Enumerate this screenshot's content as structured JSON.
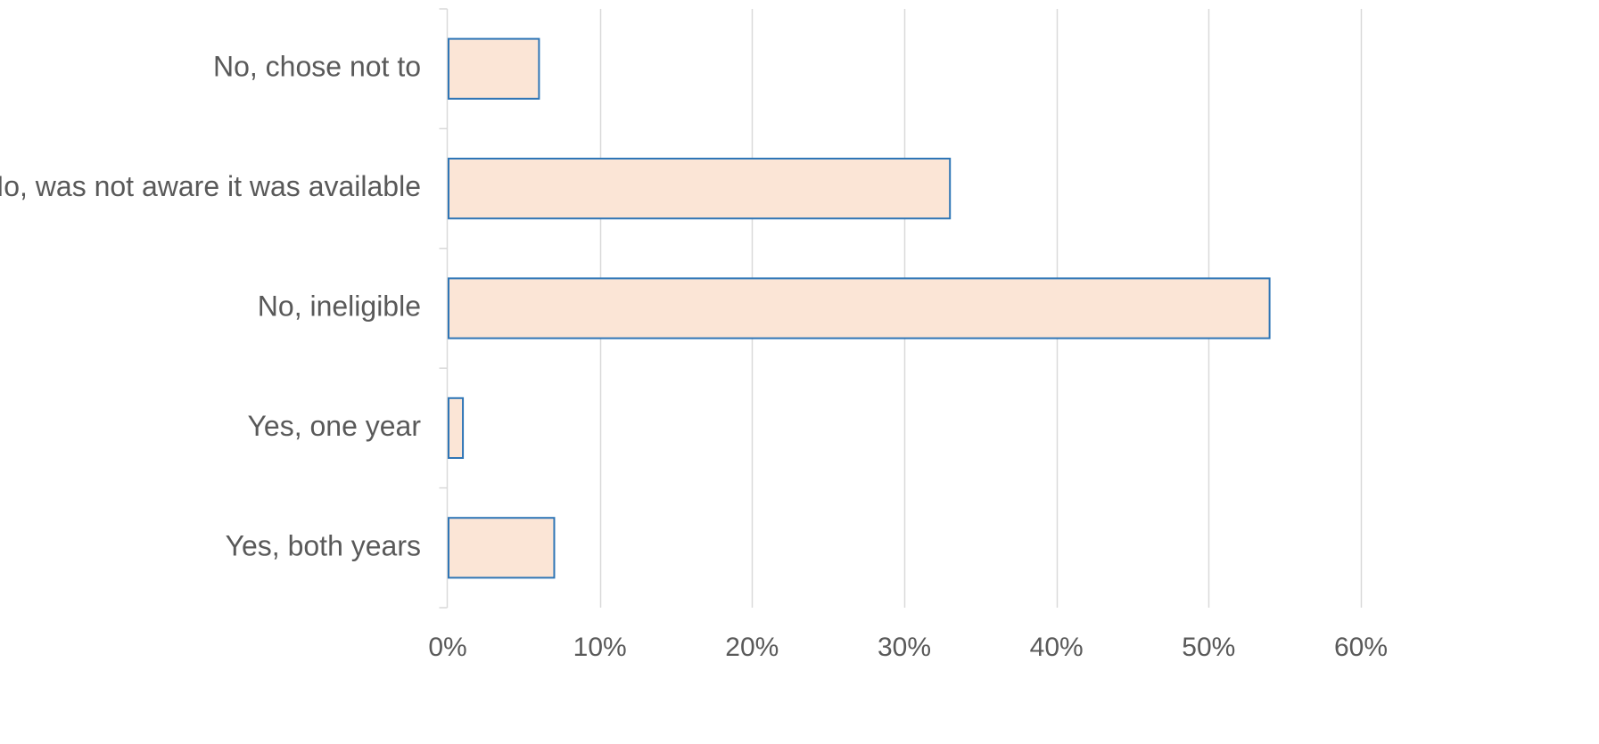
{
  "chart_data": {
    "type": "bar",
    "orientation": "horizontal",
    "categories": [
      "No, chose not to",
      "No, was not aware it was available",
      "No, ineligible",
      "Yes, one year",
      "Yes, both years"
    ],
    "values": [
      6,
      33,
      54,
      1,
      7
    ],
    "value_unit": "%",
    "xlim": [
      0,
      60
    ],
    "x_ticks": [
      0,
      10,
      20,
      30,
      40,
      50,
      60
    ],
    "x_tick_labels": [
      "0%",
      "10%",
      "20%",
      "30%",
      "40%",
      "50%",
      "60%"
    ],
    "grid": {
      "vertical": true,
      "horizontal": false
    },
    "legend": "none",
    "title": "",
    "xlabel": "",
    "ylabel": "",
    "colors": {
      "bar_fill": "#fbe5d6",
      "bar_stroke": "#2e75b6",
      "gridline": "#d9d9d9",
      "axis": "#d9d9d9",
      "text": "#595959"
    }
  }
}
